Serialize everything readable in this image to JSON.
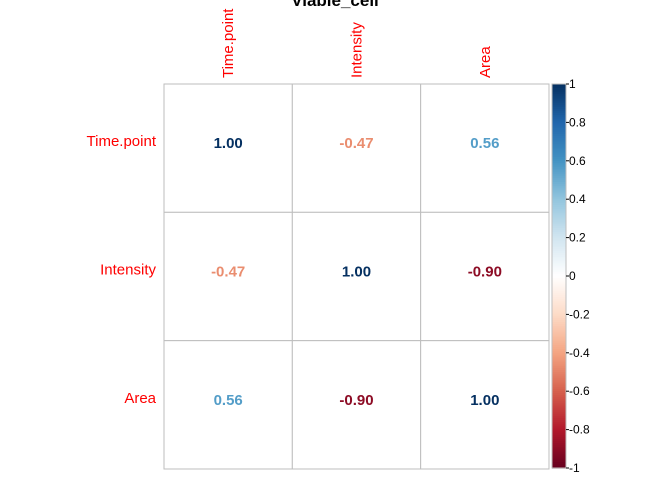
{
  "chart_data": {
    "type": "heatmap",
    "title": "Viable_cell",
    "variables": [
      "Time.point",
      "Intensity",
      "Area"
    ],
    "matrix": [
      [
        1.0,
        -0.47,
        0.56
      ],
      [
        -0.47,
        1.0,
        -0.9
      ],
      [
        0.56,
        -0.9,
        1.0
      ]
    ],
    "cell_labels": [
      [
        "1.00",
        "-0.47",
        "0.56"
      ],
      [
        "-0.47",
        "1.00",
        "-0.90"
      ],
      [
        "0.56",
        "-0.90",
        "1.00"
      ]
    ],
    "colorbar": {
      "range": [
        -1,
        1
      ],
      "ticks": [
        "1",
        "0.8",
        "0.6",
        "0.4",
        "0.2",
        "0",
        "-0.2",
        "-0.4",
        "-0.6",
        "-0.8",
        "-1"
      ]
    },
    "label_color": "#ff0000",
    "grid_color": "#bebebe",
    "colors": {
      "neg_end": "#67001f",
      "mid": "#ffffff",
      "pos_end": "#053061"
    }
  }
}
